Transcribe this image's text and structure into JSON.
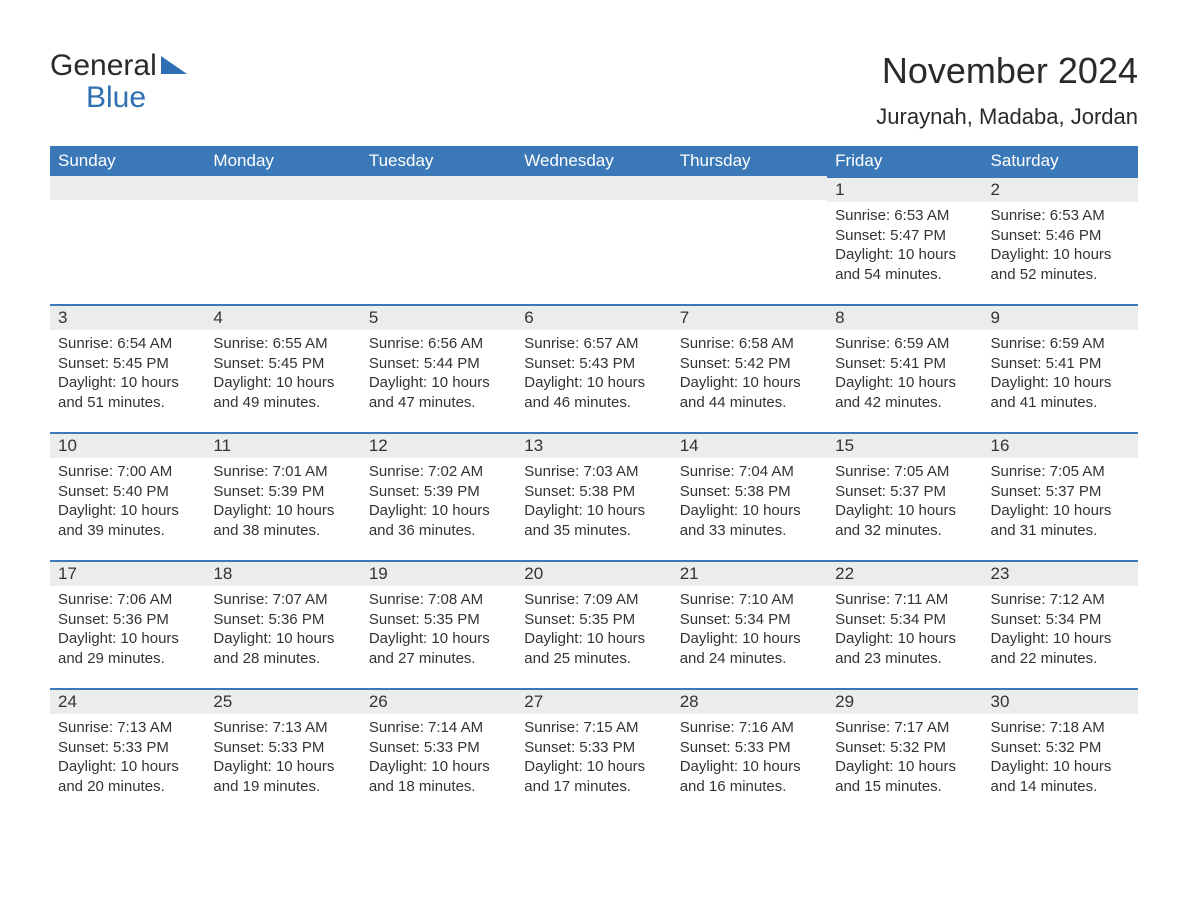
{
  "logo": {
    "word1": "General",
    "word2": "Blue"
  },
  "header": {
    "title": "November 2024",
    "subtitle": "Juraynah, Madaba, Jordan"
  },
  "calendar": {
    "type": "table",
    "accent_color": "#3b78b8",
    "daybar_bg": "#ececec",
    "text_color": "#333333",
    "days_of_week": [
      "Sunday",
      "Monday",
      "Tuesday",
      "Wednesday",
      "Thursday",
      "Friday",
      "Saturday"
    ],
    "weeks": [
      [
        {
          "empty": true
        },
        {
          "empty": true
        },
        {
          "empty": true
        },
        {
          "empty": true
        },
        {
          "empty": true
        },
        {
          "day": "1",
          "sunrise": "Sunrise: 6:53 AM",
          "sunset": "Sunset: 5:47 PM",
          "daylight": "Daylight: 10 hours and 54 minutes."
        },
        {
          "day": "2",
          "sunrise": "Sunrise: 6:53 AM",
          "sunset": "Sunset: 5:46 PM",
          "daylight": "Daylight: 10 hours and 52 minutes."
        }
      ],
      [
        {
          "day": "3",
          "sunrise": "Sunrise: 6:54 AM",
          "sunset": "Sunset: 5:45 PM",
          "daylight": "Daylight: 10 hours and 51 minutes."
        },
        {
          "day": "4",
          "sunrise": "Sunrise: 6:55 AM",
          "sunset": "Sunset: 5:45 PM",
          "daylight": "Daylight: 10 hours and 49 minutes."
        },
        {
          "day": "5",
          "sunrise": "Sunrise: 6:56 AM",
          "sunset": "Sunset: 5:44 PM",
          "daylight": "Daylight: 10 hours and 47 minutes."
        },
        {
          "day": "6",
          "sunrise": "Sunrise: 6:57 AM",
          "sunset": "Sunset: 5:43 PM",
          "daylight": "Daylight: 10 hours and 46 minutes."
        },
        {
          "day": "7",
          "sunrise": "Sunrise: 6:58 AM",
          "sunset": "Sunset: 5:42 PM",
          "daylight": "Daylight: 10 hours and 44 minutes."
        },
        {
          "day": "8",
          "sunrise": "Sunrise: 6:59 AM",
          "sunset": "Sunset: 5:41 PM",
          "daylight": "Daylight: 10 hours and 42 minutes."
        },
        {
          "day": "9",
          "sunrise": "Sunrise: 6:59 AM",
          "sunset": "Sunset: 5:41 PM",
          "daylight": "Daylight: 10 hours and 41 minutes."
        }
      ],
      [
        {
          "day": "10",
          "sunrise": "Sunrise: 7:00 AM",
          "sunset": "Sunset: 5:40 PM",
          "daylight": "Daylight: 10 hours and 39 minutes."
        },
        {
          "day": "11",
          "sunrise": "Sunrise: 7:01 AM",
          "sunset": "Sunset: 5:39 PM",
          "daylight": "Daylight: 10 hours and 38 minutes."
        },
        {
          "day": "12",
          "sunrise": "Sunrise: 7:02 AM",
          "sunset": "Sunset: 5:39 PM",
          "daylight": "Daylight: 10 hours and 36 minutes."
        },
        {
          "day": "13",
          "sunrise": "Sunrise: 7:03 AM",
          "sunset": "Sunset: 5:38 PM",
          "daylight": "Daylight: 10 hours and 35 minutes."
        },
        {
          "day": "14",
          "sunrise": "Sunrise: 7:04 AM",
          "sunset": "Sunset: 5:38 PM",
          "daylight": "Daylight: 10 hours and 33 minutes."
        },
        {
          "day": "15",
          "sunrise": "Sunrise: 7:05 AM",
          "sunset": "Sunset: 5:37 PM",
          "daylight": "Daylight: 10 hours and 32 minutes."
        },
        {
          "day": "16",
          "sunrise": "Sunrise: 7:05 AM",
          "sunset": "Sunset: 5:37 PM",
          "daylight": "Daylight: 10 hours and 31 minutes."
        }
      ],
      [
        {
          "day": "17",
          "sunrise": "Sunrise: 7:06 AM",
          "sunset": "Sunset: 5:36 PM",
          "daylight": "Daylight: 10 hours and 29 minutes."
        },
        {
          "day": "18",
          "sunrise": "Sunrise: 7:07 AM",
          "sunset": "Sunset: 5:36 PM",
          "daylight": "Daylight: 10 hours and 28 minutes."
        },
        {
          "day": "19",
          "sunrise": "Sunrise: 7:08 AM",
          "sunset": "Sunset: 5:35 PM",
          "daylight": "Daylight: 10 hours and 27 minutes."
        },
        {
          "day": "20",
          "sunrise": "Sunrise: 7:09 AM",
          "sunset": "Sunset: 5:35 PM",
          "daylight": "Daylight: 10 hours and 25 minutes."
        },
        {
          "day": "21",
          "sunrise": "Sunrise: 7:10 AM",
          "sunset": "Sunset: 5:34 PM",
          "daylight": "Daylight: 10 hours and 24 minutes."
        },
        {
          "day": "22",
          "sunrise": "Sunrise: 7:11 AM",
          "sunset": "Sunset: 5:34 PM",
          "daylight": "Daylight: 10 hours and 23 minutes."
        },
        {
          "day": "23",
          "sunrise": "Sunrise: 7:12 AM",
          "sunset": "Sunset: 5:34 PM",
          "daylight": "Daylight: 10 hours and 22 minutes."
        }
      ],
      [
        {
          "day": "24",
          "sunrise": "Sunrise: 7:13 AM",
          "sunset": "Sunset: 5:33 PM",
          "daylight": "Daylight: 10 hours and 20 minutes."
        },
        {
          "day": "25",
          "sunrise": "Sunrise: 7:13 AM",
          "sunset": "Sunset: 5:33 PM",
          "daylight": "Daylight: 10 hours and 19 minutes."
        },
        {
          "day": "26",
          "sunrise": "Sunrise: 7:14 AM",
          "sunset": "Sunset: 5:33 PM",
          "daylight": "Daylight: 10 hours and 18 minutes."
        },
        {
          "day": "27",
          "sunrise": "Sunrise: 7:15 AM",
          "sunset": "Sunset: 5:33 PM",
          "daylight": "Daylight: 10 hours and 17 minutes."
        },
        {
          "day": "28",
          "sunrise": "Sunrise: 7:16 AM",
          "sunset": "Sunset: 5:33 PM",
          "daylight": "Daylight: 10 hours and 16 minutes."
        },
        {
          "day": "29",
          "sunrise": "Sunrise: 7:17 AM",
          "sunset": "Sunset: 5:32 PM",
          "daylight": "Daylight: 10 hours and 15 minutes."
        },
        {
          "day": "30",
          "sunrise": "Sunrise: 7:18 AM",
          "sunset": "Sunset: 5:32 PM",
          "daylight": "Daylight: 10 hours and 14 minutes."
        }
      ]
    ]
  }
}
